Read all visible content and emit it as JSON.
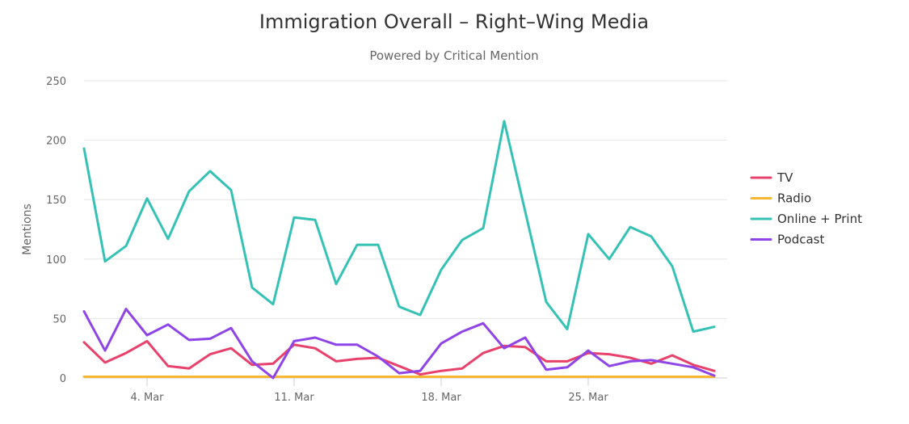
{
  "chart_data": {
    "type": "line",
    "title": "Immigration Overall – Right–Wing Media",
    "subtitle": "Powered by Critical Mention",
    "ylabel": "Mentions",
    "xlabel": "",
    "ylim": [
      0,
      250
    ],
    "yticks": [
      0,
      50,
      100,
      150,
      200,
      250
    ],
    "grid": true,
    "legend_position": "right",
    "x": [
      "1 Mar",
      "2 Mar",
      "3 Mar",
      "4 Mar",
      "5 Mar",
      "6 Mar",
      "7 Mar",
      "8 Mar",
      "9 Mar",
      "10 Mar",
      "11 Mar",
      "12 Mar",
      "13 Mar",
      "14 Mar",
      "15 Mar",
      "16 Mar",
      "17 Mar",
      "18 Mar",
      "19 Mar",
      "20 Mar",
      "21 Mar",
      "22 Mar",
      "23 Mar",
      "24 Mar",
      "25 Mar",
      "26 Mar",
      "27 Mar",
      "28 Mar",
      "29 Mar",
      "30 Mar",
      "31 Mar"
    ],
    "xticks": [
      {
        "index": 3,
        "label": "4. Mar"
      },
      {
        "index": 10,
        "label": "11. Mar"
      },
      {
        "index": 17,
        "label": "18. Mar"
      },
      {
        "index": 24,
        "label": "25. Mar"
      }
    ],
    "series": [
      {
        "name": "TV",
        "color": "#e8416b",
        "values": [
          30,
          13,
          21,
          31,
          10,
          8,
          20,
          25,
          11,
          12,
          28,
          25,
          14,
          16,
          17,
          10,
          3,
          6,
          8,
          21,
          27,
          26,
          14,
          14,
          21,
          20,
          17,
          12,
          19,
          11,
          6
        ]
      },
      {
        "name": "Radio",
        "color": "#f7b733",
        "values": [
          1,
          1,
          1,
          1,
          1,
          1,
          1,
          1,
          1,
          1,
          1,
          1,
          1,
          1,
          1,
          1,
          1,
          1,
          1,
          1,
          1,
          1,
          1,
          1,
          1,
          1,
          1,
          1,
          1,
          1,
          1
        ]
      },
      {
        "name": "Online +  Print",
        "color": "#35c2b5",
        "values": [
          193,
          98,
          111,
          151,
          117,
          157,
          174,
          158,
          76,
          62,
          135,
          133,
          79,
          112,
          112,
          60,
          53,
          91,
          116,
          126,
          216,
          140,
          64,
          41,
          121,
          100,
          127,
          119,
          94,
          39,
          43
        ]
      },
      {
        "name": "Podcast",
        "color": "#8e44e6",
        "values": [
          56,
          23,
          58,
          36,
          45,
          32,
          33,
          42,
          14,
          0,
          31,
          34,
          28,
          28,
          18,
          4,
          6,
          29,
          39,
          46,
          25,
          34,
          7,
          9,
          23,
          10,
          14,
          15,
          12,
          9,
          2
        ]
      }
    ]
  }
}
